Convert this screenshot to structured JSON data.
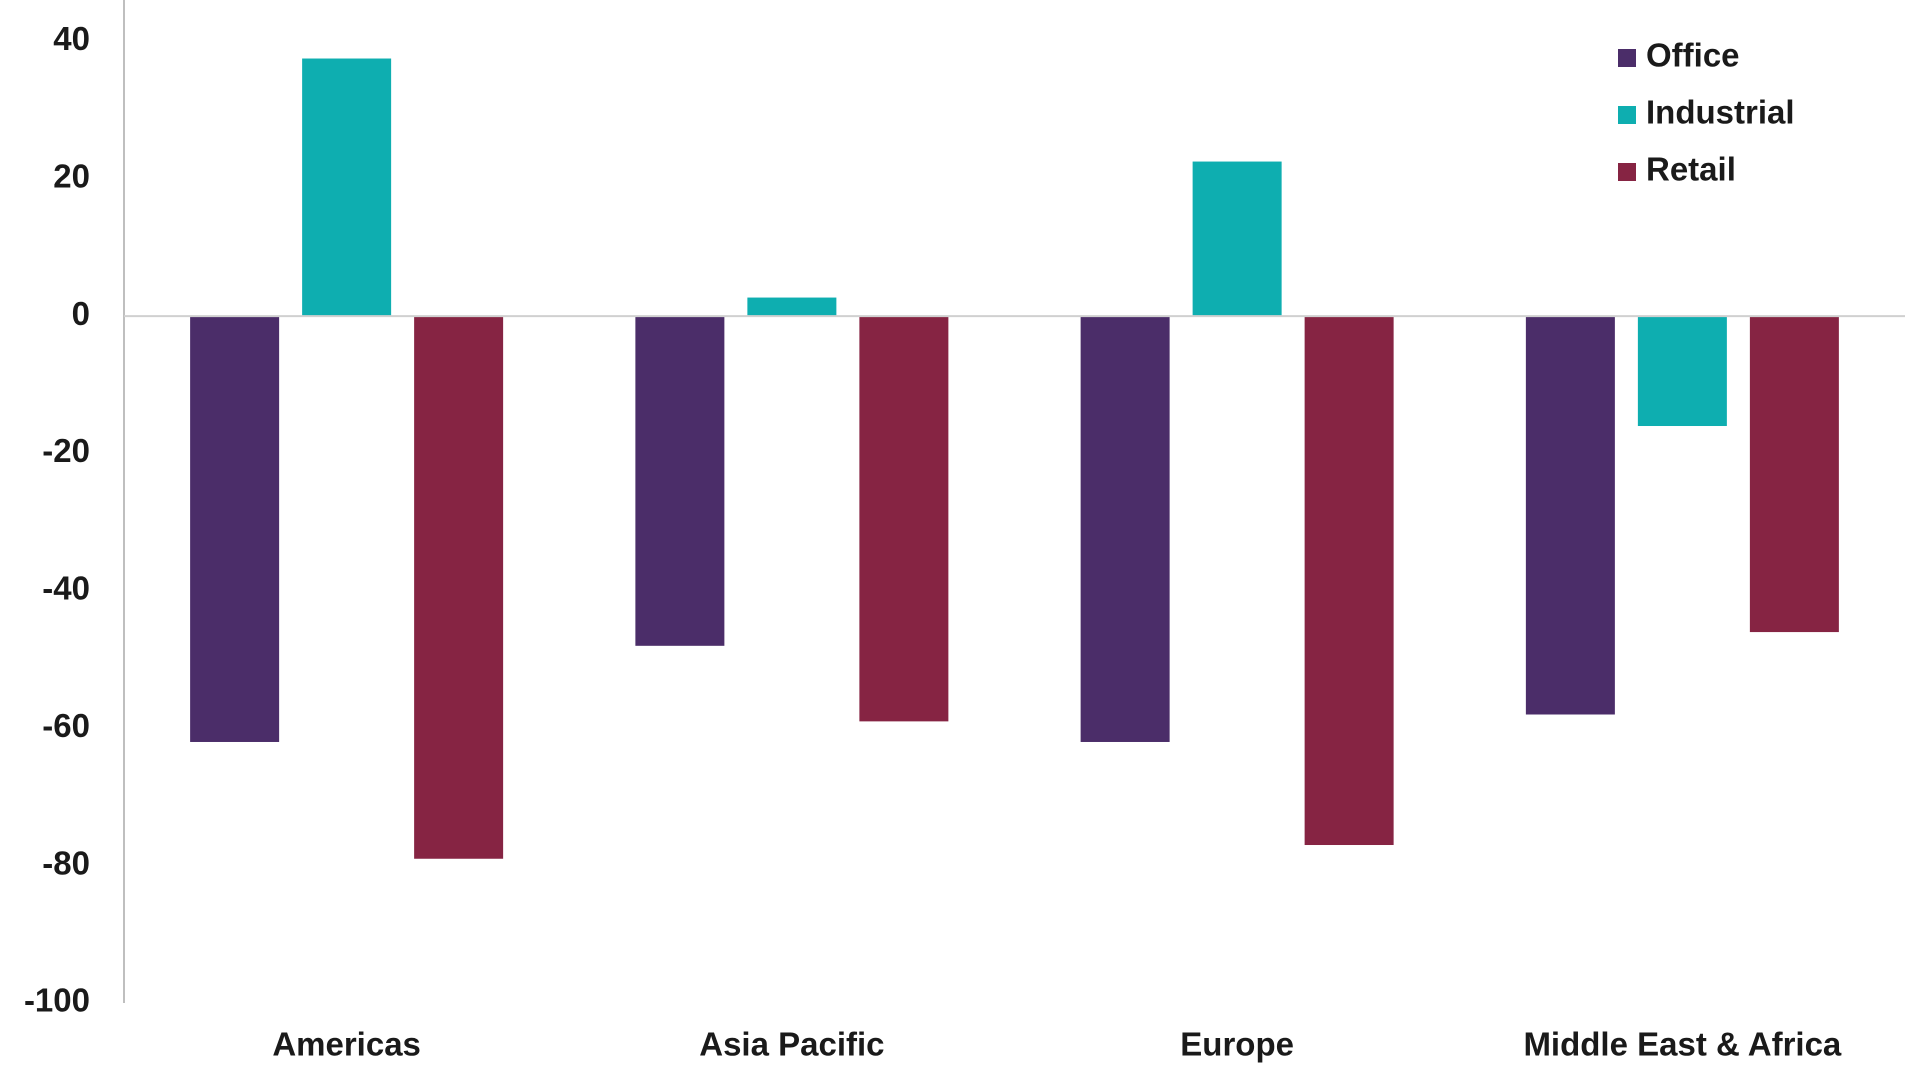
{
  "chart_data": {
    "type": "bar",
    "categories": [
      "Americas",
      "Asia Pacific",
      "Europe",
      "Middle East & Africa"
    ],
    "series": [
      {
        "name": "Office",
        "color": "#4b2d69",
        "values": [
          -62,
          -48,
          -62,
          -58
        ]
      },
      {
        "name": "Industrial",
        "color": "#0eaeb0",
        "values": [
          37.5,
          2.7,
          22.5,
          -16
        ]
      },
      {
        "name": "Retail",
        "color": "#862443",
        "values": [
          -79,
          -59,
          -77,
          -46
        ]
      }
    ],
    "ylim": [
      -100,
      45
    ],
    "yticks": [
      -100,
      -80,
      -60,
      -40,
      -20,
      0,
      20,
      40
    ],
    "grid": false,
    "legend": "top-right"
  }
}
